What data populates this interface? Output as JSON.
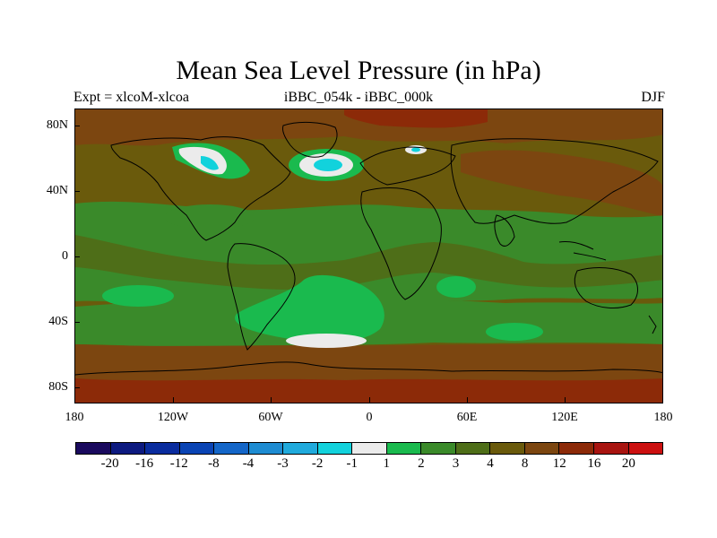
{
  "title": "Mean Sea Level Pressure (in hPa)",
  "subtitle_left": "Expt = xlcoM-xlcoa",
  "subtitle_center": "iBBC_054k - iBBC_000k",
  "subtitle_right": "DJF",
  "y_ticks": [
    "80N",
    "40N",
    "0",
    "40S",
    "80S"
  ],
  "x_ticks": [
    "180",
    "120W",
    "60W",
    "0",
    "60E",
    "120E",
    "180"
  ],
  "colorbar": {
    "colors": [
      "#1a0a5e",
      "#0d1a80",
      "#0a2c9e",
      "#0a44b4",
      "#1466c8",
      "#1e8cd2",
      "#20aadc",
      "#12d2dc",
      "#ebebeb",
      "#1aba4e",
      "#3a8a2a",
      "#4e6e18",
      "#6a5a0c",
      "#7c4610",
      "#8c2a08",
      "#a81410",
      "#cc1010"
    ],
    "labels": [
      "-20",
      "-16",
      "-12",
      "-8",
      "-4",
      "-3",
      "-2",
      "-1",
      "1",
      "2",
      "3",
      "4",
      "8",
      "12",
      "16",
      "20"
    ]
  },
  "chart_data": {
    "type": "heatmap",
    "title": "Mean Sea Level Pressure (in hPa)",
    "projection": "cylindrical equidistant",
    "units": "hPa",
    "season": "DJF",
    "experiment": "xlcoM-xlcoa",
    "difference": "iBBC_054k - iBBC_000k",
    "lon_range": [
      -180,
      180
    ],
    "lat_range": [
      -90,
      90
    ],
    "contour_levels": [
      -20,
      -16,
      -12,
      -8,
      -4,
      -3,
      -2,
      -1,
      1,
      2,
      3,
      4,
      8,
      12,
      16,
      20
    ],
    "features": [
      {
        "region": "North America / Hudson Bay",
        "value_range": [
          -2,
          1
        ]
      },
      {
        "region": "North Atlantic (south of Greenland)",
        "value_range": [
          -2,
          1
        ]
      },
      {
        "region": "Northern Scandinavia",
        "value_range": [
          -2,
          1
        ]
      },
      {
        "region": "South Atlantic near Drake Passage",
        "value_range": [
          -1,
          1
        ]
      },
      {
        "region": "Arctic Ocean",
        "value_range": [
          8,
          16
        ]
      },
      {
        "region": "Southern Ocean belt",
        "value_range": [
          8,
          12
        ]
      }
    ]
  }
}
